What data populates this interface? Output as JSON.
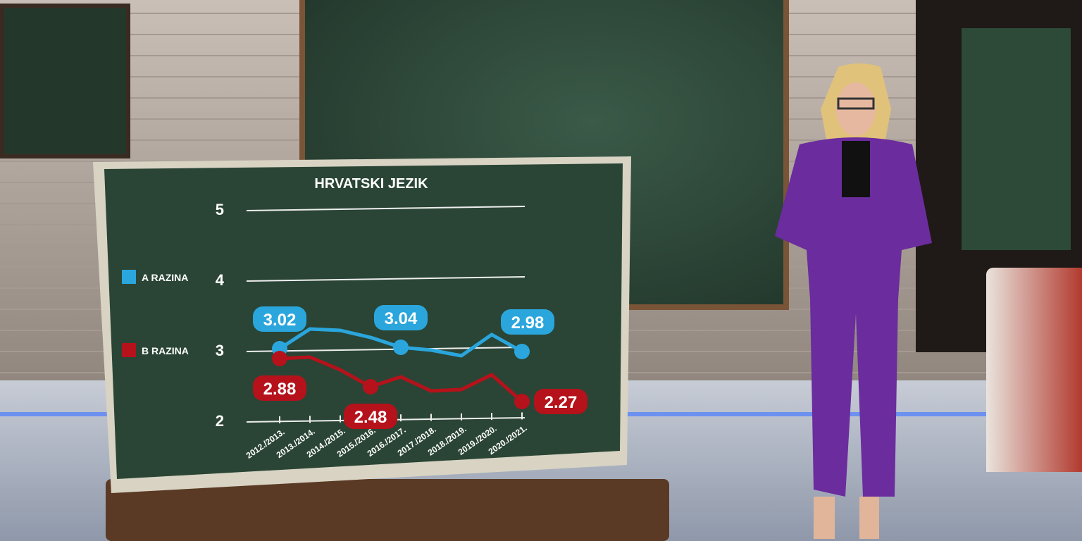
{
  "chart_data": {
    "type": "line",
    "title": "HRVATSKI JEZIK",
    "categories": [
      "2012./2013.",
      "2013./2014.",
      "2014./2015.",
      "2015./2016.",
      "2016./2017.",
      "2017./2018.",
      "2018./2019.",
      "2019./2020.",
      "2020./2021."
    ],
    "yticks": [
      "5",
      "4",
      "3",
      "2"
    ],
    "ylim": [
      2,
      5
    ],
    "grid": true,
    "legend_placement": "left",
    "series": [
      {
        "name": "A RAZINA",
        "color": "#2aa6dd",
        "values": [
          3.02,
          3.3,
          3.28,
          3.18,
          3.04,
          3.0,
          2.92,
          3.22,
          2.98
        ],
        "labels": [
          {
            "index": 0,
            "text": "3.02"
          },
          {
            "index": 4,
            "text": "3.04"
          },
          {
            "index": 8,
            "text": "2.98"
          }
        ]
      },
      {
        "name": "B RAZINA",
        "color": "#b5121b",
        "values": [
          2.88,
          2.9,
          2.72,
          2.48,
          2.62,
          2.42,
          2.44,
          2.65,
          2.27
        ],
        "labels": [
          {
            "index": 0,
            "text": "2.88"
          },
          {
            "index": 3,
            "text": "2.48"
          },
          {
            "index": 8,
            "text": "2.27"
          }
        ]
      }
    ]
  }
}
